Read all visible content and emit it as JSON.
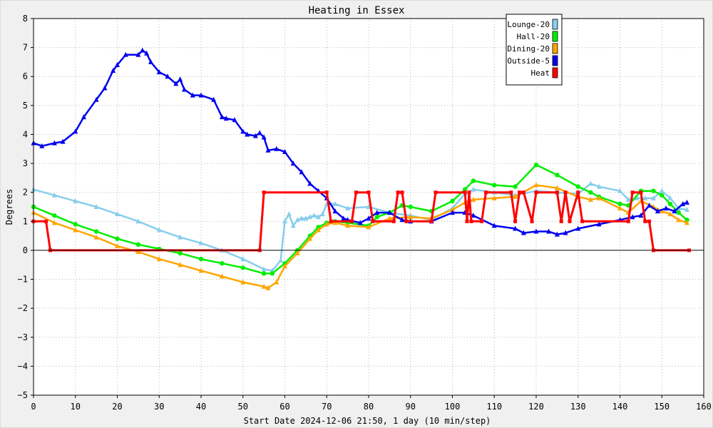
{
  "chart_data": {
    "type": "line",
    "title": "Heating in Essex",
    "xlabel": "Start Date 2024-12-06 21:50, 1 day (10 min/step)",
    "ylabel": "Degrees",
    "xlim": [
      0,
      160
    ],
    "ylim": [
      -5,
      8
    ],
    "x_ticks": [
      "0",
      "10",
      "20",
      "30",
      "40",
      "50",
      "60",
      "70",
      "80",
      "90",
      "100",
      "110",
      "120",
      "130",
      "140",
      "150",
      "160"
    ],
    "y_ticks": [
      "8",
      "7",
      "6",
      "5",
      "4",
      "3",
      "2",
      "1",
      "0",
      "−1",
      "−2",
      "−3",
      "−4",
      "−5"
    ],
    "grid": true,
    "legend_position": "top-right",
    "colors": {
      "background": "#f0f0f0",
      "plot_background": "#ffffff",
      "grid": "#b8b8b8",
      "zero_line": "#000000"
    },
    "series": [
      {
        "name": "Lounge-20",
        "color": "#87ceeb",
        "marker": "triangle",
        "x": [
          0,
          5,
          10,
          15,
          20,
          25,
          30,
          35,
          40,
          45,
          50,
          55,
          57,
          59,
          60,
          61,
          62,
          63,
          64,
          65,
          66,
          67,
          68,
          69,
          70,
          72,
          75,
          80,
          85,
          90,
          95,
          100,
          103,
          105,
          110,
          115,
          120,
          125,
          130,
          133,
          135,
          140,
          142,
          144,
          146,
          148,
          150,
          152,
          154,
          156
        ],
        "y": [
          2.1,
          1.9,
          1.7,
          1.5,
          1.25,
          1.0,
          0.7,
          0.45,
          0.25,
          0.0,
          -0.3,
          -0.65,
          -0.7,
          -0.35,
          1.0,
          1.25,
          0.85,
          1.05,
          1.1,
          1.1,
          1.15,
          1.2,
          1.15,
          1.25,
          1.6,
          1.6,
          1.45,
          1.5,
          1.3,
          1.2,
          1.05,
          1.45,
          1.95,
          2.1,
          2.0,
          1.9,
          2.05,
          2.0,
          1.95,
          2.3,
          2.2,
          2.05,
          1.75,
          1.8,
          1.8,
          1.8,
          2.05,
          1.8,
          1.45,
          1.4
        ]
      },
      {
        "name": "Hall-20",
        "color": "#00ee00",
        "marker": "circle",
        "x": [
          0,
          5,
          10,
          15,
          20,
          25,
          30,
          35,
          40,
          45,
          50,
          55,
          57,
          60,
          63,
          66,
          68,
          70,
          72,
          75,
          80,
          82,
          85,
          88,
          90,
          95,
          100,
          103,
          105,
          110,
          115,
          120,
          125,
          130,
          133,
          135,
          140,
          142,
          145,
          148,
          150,
          152,
          154,
          156
        ],
        "y": [
          1.5,
          1.2,
          0.9,
          0.65,
          0.4,
          0.2,
          0.05,
          -0.1,
          -0.3,
          -0.45,
          -0.6,
          -0.8,
          -0.8,
          -0.45,
          0.0,
          0.5,
          0.8,
          0.95,
          1.0,
          0.95,
          0.85,
          1.15,
          1.3,
          1.55,
          1.5,
          1.35,
          1.7,
          2.1,
          2.4,
          2.25,
          2.2,
          2.95,
          2.6,
          2.2,
          2.0,
          1.85,
          1.6,
          1.55,
          2.05,
          2.05,
          1.9,
          1.6,
          1.3,
          1.05
        ]
      },
      {
        "name": "Dining-20",
        "color": "#ffa500",
        "marker": "triangle",
        "x": [
          0,
          5,
          10,
          15,
          20,
          25,
          30,
          35,
          40,
          45,
          50,
          55,
          56,
          58,
          60,
          63,
          66,
          68,
          70,
          72,
          75,
          80,
          85,
          90,
          95,
          100,
          103,
          105,
          110,
          115,
          120,
          125,
          130,
          133,
          135,
          140,
          142,
          145,
          148,
          150,
          152,
          154,
          156
        ],
        "y": [
          1.3,
          0.95,
          0.7,
          0.45,
          0.15,
          -0.05,
          -0.3,
          -0.5,
          -0.7,
          -0.9,
          -1.1,
          -1.25,
          -1.3,
          -1.1,
          -0.55,
          -0.1,
          0.4,
          0.7,
          0.9,
          0.95,
          0.85,
          0.8,
          1.1,
          1.15,
          1.1,
          1.4,
          1.65,
          1.75,
          1.8,
          1.85,
          2.25,
          2.15,
          1.85,
          1.75,
          1.8,
          1.45,
          1.3,
          1.7,
          1.5,
          1.35,
          1.25,
          1.05,
          0.95
        ]
      },
      {
        "name": "Outside-5",
        "color": "#0000ee",
        "marker": "triangle",
        "x": [
          0,
          2,
          5,
          7,
          10,
          12,
          15,
          17,
          19,
          20,
          22,
          25,
          26,
          27,
          28,
          30,
          32,
          34,
          35,
          36,
          38,
          40,
          43,
          45,
          46,
          48,
          50,
          51,
          53,
          54,
          55,
          56,
          58,
          60,
          62,
          64,
          66,
          68,
          70,
          72,
          74,
          75,
          78,
          80,
          82,
          85,
          88,
          90,
          95,
          100,
          103,
          105,
          110,
          115,
          117,
          120,
          123,
          125,
          127,
          130,
          135,
          140,
          143,
          145,
          147,
          149,
          151,
          153,
          155,
          156
        ],
        "y": [
          3.7,
          3.6,
          3.7,
          3.75,
          4.1,
          4.6,
          5.2,
          5.6,
          6.2,
          6.4,
          6.75,
          6.75,
          6.9,
          6.8,
          6.5,
          6.15,
          6.0,
          5.75,
          5.9,
          5.55,
          5.35,
          5.35,
          5.2,
          4.6,
          4.55,
          4.5,
          4.1,
          4.0,
          3.95,
          4.05,
          3.9,
          3.45,
          3.5,
          3.4,
          3.0,
          2.7,
          2.3,
          2.05,
          1.8,
          1.35,
          1.1,
          1.05,
          0.95,
          1.1,
          1.3,
          1.3,
          1.05,
          1.0,
          1.0,
          1.3,
          1.3,
          1.2,
          0.85,
          0.75,
          0.6,
          0.65,
          0.65,
          0.55,
          0.6,
          0.75,
          0.9,
          1.05,
          1.15,
          1.2,
          1.55,
          1.35,
          1.45,
          1.35,
          1.6,
          1.65
        ]
      },
      {
        "name": "Heat",
        "color": "#ff0000",
        "marker": "square",
        "x": [
          0,
          3,
          4,
          54,
          55,
          70,
          71,
          76,
          77,
          80,
          81,
          86,
          87,
          88,
          89,
          95,
          96,
          103,
          103.5,
          104,
          104.5,
          107,
          108,
          114,
          115,
          116,
          117,
          119,
          120,
          125,
          126,
          127,
          128,
          130,
          131,
          142,
          143,
          145,
          146,
          147,
          148,
          156.5
        ],
        "y": [
          1,
          1,
          0,
          0,
          2,
          2,
          1,
          1,
          2,
          2,
          1,
          1,
          2,
          2,
          1,
          1,
          2,
          2,
          1,
          2,
          1,
          1,
          2,
          2,
          1,
          2,
          2,
          1,
          2,
          2,
          1,
          2,
          1,
          2,
          1,
          1,
          2,
          2,
          1,
          1,
          0,
          0
        ]
      }
    ]
  }
}
